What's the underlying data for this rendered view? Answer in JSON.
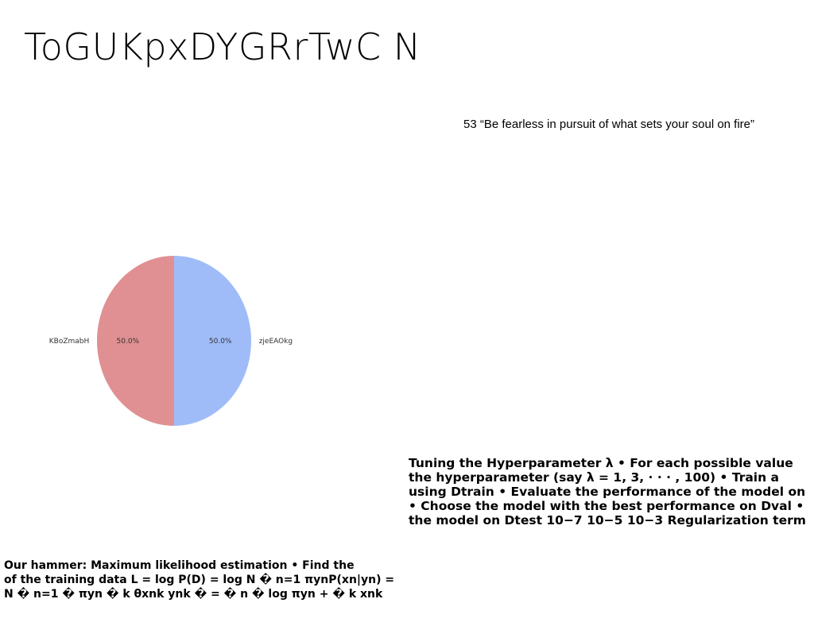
{
  "title": "ToGUKpxDYGRrTwC N",
  "quote": "53 “Be fearless in pursuit of what sets your soul on fire”",
  "chart_data": {
    "type": "pie",
    "labels": [
      "zjeEAOkg",
      "KBoZmabH"
    ],
    "values": [
      50.0,
      50.0
    ],
    "percent_labels": [
      "50.0%",
      "50.0%"
    ],
    "colors": [
      "#a0bcf8",
      "#e09092"
    ]
  },
  "text_right": {
    "lines": [
      "Tuning the Hyperparameter λ • For each possible value",
      "the hyperparameter (say λ = 1, 3, · · · , 100) • Train a",
      "using Dtrain • Evaluate the performance of the model on",
      "• Choose the model with the best performance on Dval •",
      "the model on Dtest 10−7 10−5 10−3 Regularization term"
    ]
  },
  "text_left": {
    "lines": [
      "Our hammer: Maximum likelihood estimation • Find the",
      "of the training data L = log P(D) = log N � n=1 πynP(xn|yn) =",
      "N � n=1 � πyn � k θxnk ynk � = � n � log πyn + � k xnk"
    ]
  }
}
